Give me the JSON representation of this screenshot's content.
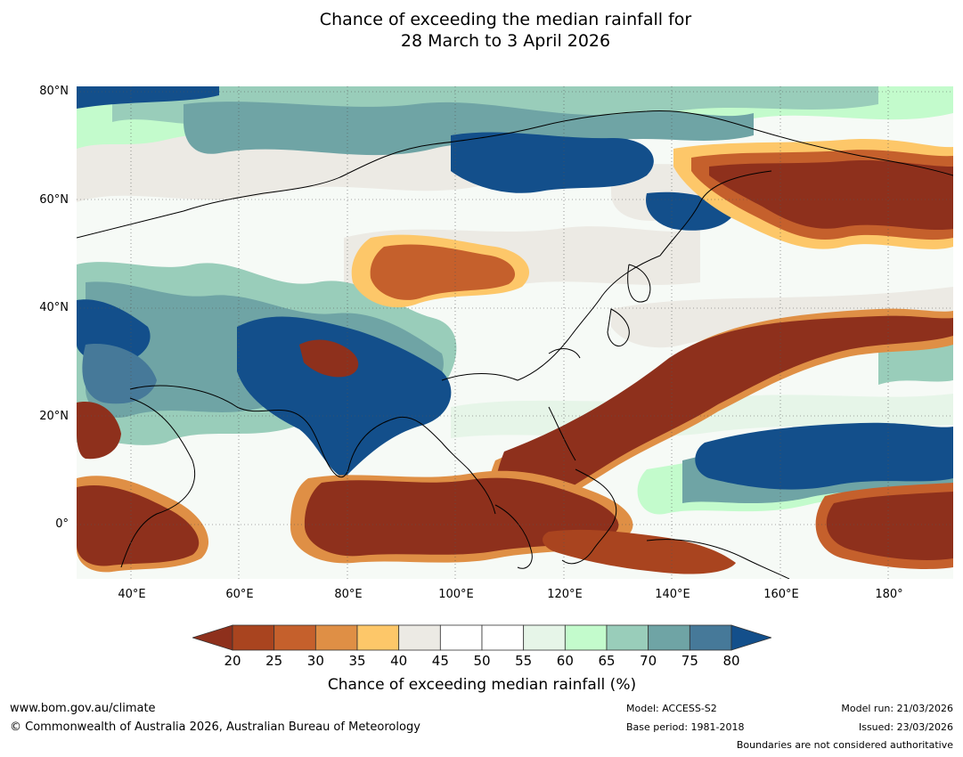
{
  "title": {
    "line1": "Chance of exceeding the median rainfall for",
    "line2": "28 March to 3 April 2026"
  },
  "map": {
    "lat_labels": [
      "80°N",
      "60°N",
      "40°N",
      "20°N",
      "0°"
    ],
    "lon_labels": [
      "40°E",
      "60°E",
      "80°E",
      "100°E",
      "120°E",
      "140°E",
      "160°E",
      "180°"
    ],
    "lon_range": [
      30,
      192
    ],
    "lat_range": [
      -10,
      81
    ]
  },
  "colorbar": {
    "ticks": [
      "20",
      "25",
      "30",
      "35",
      "40",
      "45",
      "50",
      "55",
      "60",
      "65",
      "70",
      "75",
      "80"
    ],
    "colors": [
      "#8e301c",
      "#a9441f",
      "#c5602c",
      "#df8f45",
      "#fdc769",
      "#eceae4",
      "#ffffff",
      "#ffffff",
      "#e6f5e8",
      "#c3fbcc",
      "#99cdba",
      "#6fa4a5",
      "#467999",
      "#134f8b"
    ],
    "label": "Chance of exceeding median rainfall (%)"
  },
  "footer": {
    "website": "www.bom.gov.au/climate",
    "copyright": "© Commonwealth of Australia 2026, Australian Bureau of Meteorology",
    "model": "Model: ACCESS-S2",
    "base_period": "Base period: 1981-2018",
    "model_run": "Model run: 21/03/2026",
    "issued": "Issued: 23/03/2026",
    "disclaimer": "Boundaries are not considered authoritative"
  }
}
